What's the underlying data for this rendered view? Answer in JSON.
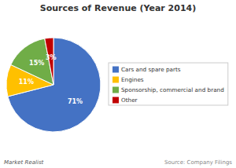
{
  "chart_data": {
    "type": "pie",
    "title": "Sources  of  Revenue (Year 2014)",
    "categories": [
      "Cars and spare parts",
      "Engines",
      "Sponsorship, commercial and brand",
      "Other"
    ],
    "values": [
      71,
      11,
      15,
      3
    ],
    "value_labels": [
      "71%",
      "11%",
      "15%",
      "3%"
    ],
    "colors": [
      "#4472C4",
      "#FFC000",
      "#70AD47",
      "#C00000"
    ],
    "legend": "right",
    "data_labels": true,
    "annotations": [
      "Market Realist",
      "Source: Company Filings"
    ]
  }
}
